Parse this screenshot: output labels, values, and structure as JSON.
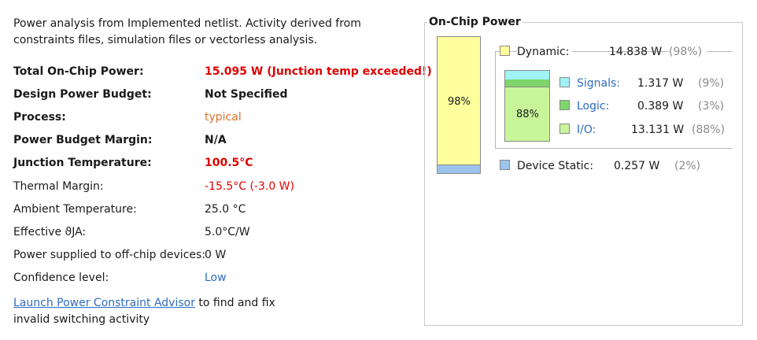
{
  "intro": "Power analysis from Implemented netlist. Activity derived from constraints files, simulation files or vectorless analysis.",
  "summary": [
    {
      "label": "Total On-Chip Power:",
      "value": "15.095 W (Junction temp exceeded!)",
      "bold": true,
      "style": "red-bold"
    },
    {
      "label": "Design Power Budget:",
      "value": "Not Specified",
      "bold": true,
      "style": "bold"
    },
    {
      "label": "Process:",
      "value": "typical",
      "bold": true,
      "style": "orange"
    },
    {
      "label": "Power Budget Margin:",
      "value": "N/A",
      "bold": true,
      "style": "bold"
    },
    {
      "label": "Junction Temperature:",
      "value": "100.5°C",
      "bold": true,
      "style": "red-bold"
    },
    {
      "label": "Thermal Margin:",
      "value": "-15.5°C (-3.0 W)",
      "bold": false,
      "style": "red"
    },
    {
      "label": "Ambient Temperature:",
      "value": "25.0 °C",
      "bold": false,
      "style": "normal"
    },
    {
      "label": "Effective ϑJA:",
      "value": "5.0°C/W",
      "bold": false,
      "style": "normal"
    },
    {
      "label": "Power supplied to off-chip devices:",
      "value": "0 W",
      "bold": false,
      "style": "normal"
    },
    {
      "label": "Confidence level:",
      "value": "Low",
      "bold": false,
      "style": "blue"
    }
  ],
  "footer": {
    "link": "Launch Power Constraint Advisor",
    "text_1": " to find and fix",
    "text_2": "invalid switching activity"
  },
  "panel": {
    "title": "On-Chip Power",
    "dynamic_fraction": 0.98,
    "dynamic_pct_label": "98%",
    "io_pct_label": "88%",
    "dynamic": {
      "label": "Dynamic:",
      "value": "14.838 W",
      "pct": "(98%)",
      "color": "#ffff9e"
    },
    "signals": {
      "label": "Signals:",
      "value": "1.317 W",
      "pct": "(9%)",
      "color": "#9ff3f6"
    },
    "logic": {
      "label": "Logic:",
      "value": "0.389 W",
      "pct": "(3%)",
      "color": "#7fd46a"
    },
    "io": {
      "label": "I/O:",
      "value": "13.131 W",
      "pct": "(88%)",
      "color": "#c9f59a"
    },
    "static": {
      "label": "Device Static:",
      "value": "0.257 W",
      "pct": "(2%)",
      "color": "#9cc3ee"
    }
  }
}
